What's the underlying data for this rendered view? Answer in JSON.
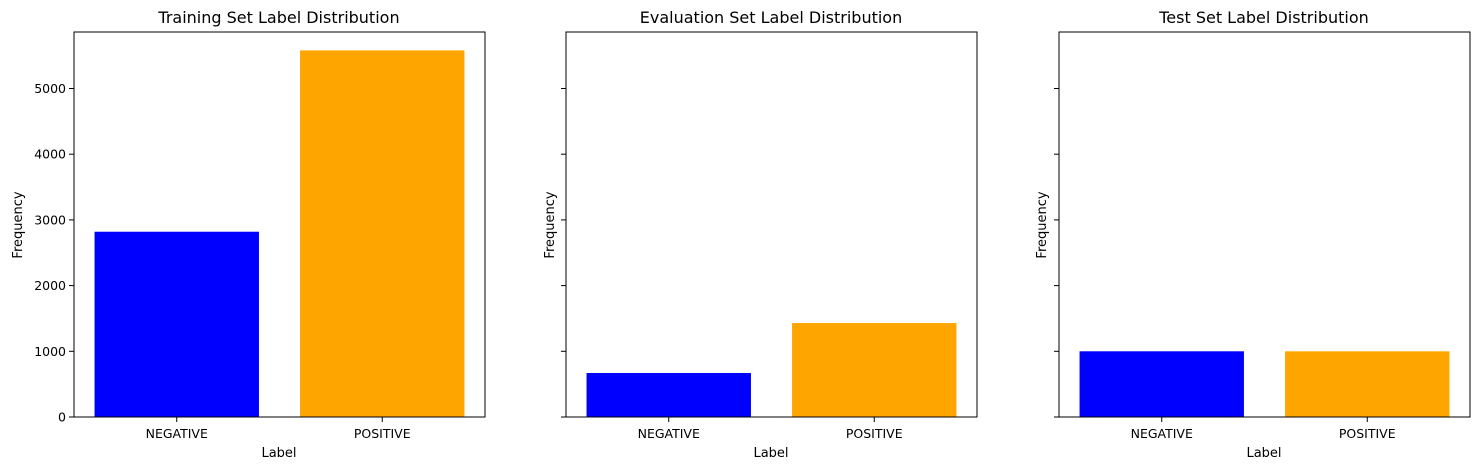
{
  "chart_data": [
    {
      "type": "bar",
      "title": "Training Set Label Distribution",
      "xlabel": "Label",
      "ylabel": "Frequency",
      "categories": [
        "NEGATIVE",
        "POSITIVE"
      ],
      "values": [
        2820,
        5580
      ],
      "colors": [
        "#0000ff",
        "#ffa500"
      ],
      "ylim": [
        0,
        5860
      ],
      "yticks": [
        0,
        1000,
        2000,
        3000,
        4000,
        5000
      ],
      "show_ytick_labels": true,
      "grid": false
    },
    {
      "type": "bar",
      "title": "Evaluation Set Label Distribution",
      "xlabel": "Label",
      "ylabel": "Frequency",
      "categories": [
        "NEGATIVE",
        "POSITIVE"
      ],
      "values": [
        670,
        1430
      ],
      "colors": [
        "#0000ff",
        "#ffa500"
      ],
      "ylim": [
        0,
        5860
      ],
      "yticks": [
        0,
        1000,
        2000,
        3000,
        4000,
        5000
      ],
      "show_ytick_labels": false,
      "grid": false
    },
    {
      "type": "bar",
      "title": "Test Set Label Distribution",
      "xlabel": "Label",
      "ylabel": "Frequency",
      "categories": [
        "NEGATIVE",
        "POSITIVE"
      ],
      "values": [
        1000,
        1000
      ],
      "colors": [
        "#0000ff",
        "#ffa500"
      ],
      "ylim": [
        0,
        5860
      ],
      "yticks": [
        0,
        1000,
        2000,
        3000,
        4000,
        5000
      ],
      "show_ytick_labels": false,
      "grid": false
    }
  ]
}
